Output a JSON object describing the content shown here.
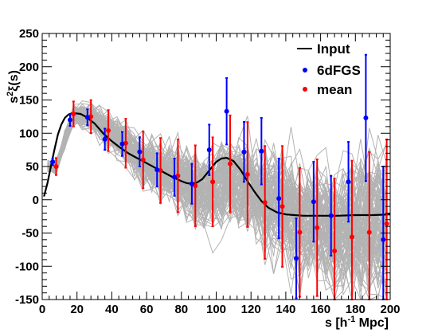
{
  "chart_data": {
    "type": "scatter",
    "xlabel": "s [h",
    "xlabel_sup": "-1",
    "xlabel_tail": " Mpc]",
    "ylabel": "s",
    "ylabel_sup": "2",
    "ylabel_tail": "ξ(s)",
    "xlim": [
      0,
      200
    ],
    "ylim": [
      -150,
      250
    ],
    "x_ticks": [
      0,
      20,
      40,
      60,
      80,
      100,
      120,
      140,
      160,
      180,
      200
    ],
    "y_ticks": [
      -150,
      -100,
      -50,
      0,
      50,
      100,
      150,
      200,
      250
    ],
    "legend_position": "top-right",
    "grid": false,
    "series": [
      {
        "name": "Input",
        "kind": "line",
        "color": "#000000",
        "x": [
          1,
          3,
          5,
          7,
          9,
          11,
          13,
          15,
          17,
          19,
          22,
          25,
          30,
          35,
          40,
          45,
          50,
          55,
          60,
          65,
          70,
          75,
          80,
          83,
          86,
          89,
          92,
          96,
          100,
          103,
          106,
          110,
          114,
          118,
          122,
          126,
          130,
          135,
          140,
          145,
          150,
          160,
          170,
          180,
          190,
          200
        ],
        "y": [
          5,
          25,
          50,
          75,
          98,
          113,
          123,
          128,
          130,
          130,
          129,
          125,
          115,
          100,
          88,
          78,
          69,
          62,
          55,
          48,
          41,
          34,
          28,
          25,
          24,
          26,
          31,
          44,
          57,
          62,
          63,
          58,
          45,
          28,
          12,
          -2,
          -12,
          -19,
          -22,
          -23,
          -24,
          -24,
          -24,
          -23,
          -23,
          -22
        ]
      },
      {
        "name": "6dFGS",
        "kind": "points",
        "color": "#0000ff",
        "x": [
          6,
          16,
          26,
          36,
          46,
          56,
          66,
          76,
          86,
          96,
          106,
          116,
          126,
          136,
          146,
          156,
          166,
          176,
          186,
          196
        ],
        "y": [
          57,
          120,
          124,
          91,
          84,
          72,
          45,
          34,
          24,
          75,
          133,
          72,
          73,
          2,
          -88,
          -3,
          -24,
          27,
          123,
          -60
        ],
        "err": [
          5,
          9,
          12,
          16,
          18,
          22,
          25,
          28,
          30,
          38,
          50,
          45,
          50,
          60,
          60,
          60,
          60,
          60,
          95,
          110
        ]
      },
      {
        "name": "mean",
        "kind": "points",
        "color": "#ff0000",
        "x": [
          8,
          18,
          28,
          38,
          48,
          58,
          68,
          78,
          88,
          98,
          108,
          118,
          128,
          138,
          148,
          158,
          168,
          178,
          188,
          198
        ],
        "y": [
          50,
          129,
          125,
          104,
          85,
          60,
          44,
          36,
          21,
          27,
          54,
          38,
          -4,
          -10,
          -49,
          -42,
          -77,
          -56,
          -49,
          -36
        ]
      }
    ]
  }
}
